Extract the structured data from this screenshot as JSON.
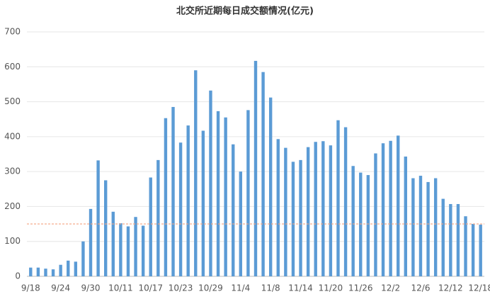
{
  "chart_data": {
    "type": "bar",
    "title": "北交所近期每日成交额情况(亿元)",
    "categories": [
      "9/18",
      null,
      null,
      null,
      "9/24",
      null,
      null,
      null,
      "9/30",
      null,
      null,
      null,
      "10/11",
      null,
      null,
      null,
      "10/17",
      null,
      null,
      null,
      "10/23",
      null,
      null,
      null,
      "10/29",
      null,
      null,
      null,
      "11/4",
      null,
      null,
      null,
      "11/8",
      null,
      null,
      null,
      "11/14",
      null,
      null,
      null,
      "11/20",
      null,
      null,
      null,
      "11/26",
      null,
      null,
      null,
      "12/2",
      null,
      null,
      null,
      "12/6",
      null,
      null,
      null,
      "12/12",
      null,
      null,
      null,
      "12/18"
    ],
    "values": [
      25,
      25,
      22,
      20,
      33,
      45,
      42,
      100,
      193,
      332,
      275,
      185,
      152,
      143,
      170,
      145,
      283,
      333,
      453,
      485,
      383,
      432,
      590,
      417,
      532,
      473,
      455,
      378,
      300,
      476,
      617,
      585,
      512,
      393,
      368,
      328,
      333,
      370,
      385,
      387,
      375,
      447,
      427,
      316,
      297,
      290,
      352,
      381,
      388,
      403,
      343,
      281,
      288,
      270,
      281,
      222,
      207,
      207,
      172,
      150,
      148
    ],
    "color": "#5b9bd5",
    "ylim": [
      0,
      700
    ],
    "yticks": [
      0,
      100,
      200,
      300,
      400,
      500,
      600,
      700
    ],
    "grid": true,
    "reference_line": {
      "value": 150,
      "color": "#f4a582"
    }
  }
}
